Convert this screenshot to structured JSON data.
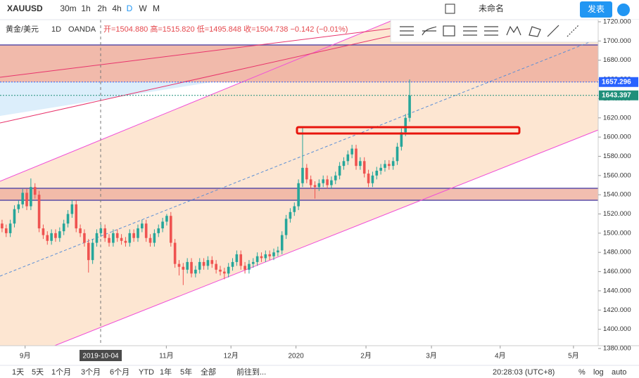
{
  "toolbar": {
    "symbol": "XAUUSD",
    "intervals": [
      "30m",
      "1h",
      "2h",
      "4h",
      "D",
      "W",
      "M"
    ],
    "layout_name": "未命名",
    "publish": "发表"
  },
  "legend": {
    "name": "黄金/美元",
    "interval": "1D",
    "source": "OANDA",
    "ohlc": "开=1504.880 高=1515.820 低=1495.848 收=1504.738 −0.142 (−0.01%)"
  },
  "footer": {
    "ranges": [
      "1天",
      "5天",
      "1个月",
      "3个月",
      "6个月",
      "YTD",
      "1年",
      "5年",
      "全部"
    ],
    "goto": "前往到...",
    "clock": "20:28:03 (UTC+8)",
    "percent": "%",
    "log": "log",
    "auto": "auto"
  },
  "chart_data": {
    "type": "candlestick",
    "up_color": "#26a69a",
    "down_color": "#ef5350",
    "open": [
      1510,
      1505,
      1500,
      1510,
      1525,
      1530,
      1542,
      1528,
      1548,
      1540,
      1505,
      1498,
      1492,
      1500,
      1495,
      1502,
      1510,
      1520,
      1530,
      1505,
      1500,
      1490,
      1472,
      1490,
      1500,
      1505,
      1495,
      1490,
      1500,
      1495,
      1492,
      1490,
      1500,
      1495,
      1505,
      1510,
      1495,
      1490,
      1500,
      1505,
      1512,
      1518,
      1490,
      1468,
      1465,
      1462,
      1470,
      1458,
      1462,
      1470,
      1466,
      1472,
      1468,
      1462,
      1460,
      1458,
      1465,
      1470,
      1478,
      1466,
      1462,
      1468,
      1470,
      1476,
      1474,
      1478,
      1476,
      1480,
      1482,
      1498,
      1515,
      1522,
      1528,
      1552,
      1568,
      1556,
      1550,
      1548,
      1552,
      1556,
      1550,
      1555,
      1560,
      1570,
      1575,
      1582,
      1588,
      1570,
      1575,
      1562,
      1552,
      1560,
      1565,
      1568,
      1572,
      1570,
      1575,
      1590,
      1605,
      1620
    ],
    "high": [
      1514,
      1509,
      1514,
      1529,
      1534,
      1546,
      1546,
      1557,
      1552,
      1544,
      1509,
      1502,
      1504,
      1504,
      1506,
      1514,
      1524,
      1535,
      1534,
      1509,
      1504,
      1494,
      1494,
      1504,
      1509,
      1509,
      1499,
      1504,
      1504,
      1499,
      1496,
      1504,
      1504,
      1509,
      1514,
      1514,
      1499,
      1504,
      1509,
      1516,
      1520,
      1522,
      1494,
      1472,
      1469,
      1474,
      1474,
      1466,
      1474,
      1474,
      1476,
      1476,
      1472,
      1466,
      1464,
      1469,
      1474,
      1482,
      1482,
      1470,
      1472,
      1474,
      1480,
      1480,
      1482,
      1482,
      1484,
      1486,
      1502,
      1519,
      1526,
      1532,
      1556,
      1611,
      1572,
      1560,
      1554,
      1556,
      1560,
      1560,
      1559,
      1564,
      1574,
      1579,
      1586,
      1592,
      1592,
      1579,
      1579,
      1566,
      1564,
      1569,
      1572,
      1576,
      1576,
      1579,
      1594,
      1609,
      1624,
      1660
    ],
    "low": [
      1501,
      1496,
      1496,
      1506,
      1521,
      1526,
      1524,
      1524,
      1536,
      1501,
      1494,
      1488,
      1488,
      1491,
      1491,
      1498,
      1506,
      1516,
      1501,
      1496,
      1486,
      1459,
      1468,
      1486,
      1496,
      1491,
      1486,
      1486,
      1491,
      1488,
      1486,
      1486,
      1491,
      1491,
      1501,
      1491,
      1486,
      1486,
      1496,
      1501,
      1508,
      1486,
      1464,
      1456,
      1446,
      1458,
      1454,
      1454,
      1458,
      1462,
      1462,
      1464,
      1458,
      1456,
      1452,
      1454,
      1461,
      1466,
      1462,
      1458,
      1458,
      1464,
      1466,
      1470,
      1470,
      1472,
      1472,
      1476,
      1478,
      1494,
      1511,
      1518,
      1524,
      1548,
      1552,
      1546,
      1536,
      1544,
      1548,
      1546,
      1546,
      1551,
      1556,
      1566,
      1571,
      1578,
      1566,
      1566,
      1558,
      1548,
      1548,
      1556,
      1561,
      1564,
      1566,
      1566,
      1571,
      1586,
      1601,
      1616
    ],
    "close": [
      1505,
      1500,
      1510,
      1525,
      1530,
      1542,
      1528,
      1548,
      1540,
      1505,
      1498,
      1492,
      1500,
      1495,
      1502,
      1510,
      1520,
      1530,
      1505,
      1500,
      1490,
      1472,
      1490,
      1500,
      1505,
      1495,
      1490,
      1500,
      1495,
      1492,
      1490,
      1500,
      1495,
      1505,
      1510,
      1495,
      1490,
      1500,
      1505,
      1512,
      1518,
      1490,
      1468,
      1465,
      1462,
      1470,
      1458,
      1462,
      1470,
      1466,
      1472,
      1468,
      1462,
      1460,
      1458,
      1465,
      1470,
      1478,
      1466,
      1462,
      1468,
      1470,
      1476,
      1474,
      1478,
      1476,
      1480,
      1482,
      1498,
      1515,
      1522,
      1528,
      1552,
      1568,
      1556,
      1550,
      1548,
      1552,
      1556,
      1550,
      1555,
      1560,
      1570,
      1575,
      1582,
      1588,
      1570,
      1575,
      1562,
      1552,
      1560,
      1565,
      1568,
      1572,
      1570,
      1575,
      1590,
      1605,
      1620,
      1643.397
    ],
    "xlim": [
      -0.5,
      144.8
    ],
    "xticks": [
      {
        "value": 5.6,
        "label": "9月"
      },
      {
        "value": 39.9,
        "label": "11月"
      },
      {
        "value": 55.6,
        "label": "12月"
      },
      {
        "value": 71.4,
        "label": "2020"
      },
      {
        "value": 88.4,
        "label": "2月"
      },
      {
        "value": 104.3,
        "label": "3月"
      },
      {
        "value": 121,
        "label": "4月"
      },
      {
        "value": 138.8,
        "label": "5月"
      }
    ],
    "crosshair_date": "2019-10-04",
    "ylim": [
      1377.5,
      1720
    ],
    "yticks": [
      {
        "value": 1380,
        "label": "1380.000"
      },
      {
        "value": 1400,
        "label": "1400.000"
      },
      {
        "value": 1420,
        "label": "1420.000"
      },
      {
        "value": 1440,
        "label": "1440.000"
      },
      {
        "value": 1460,
        "label": "1460.000"
      },
      {
        "value": 1480,
        "label": "1480.000"
      },
      {
        "value": 1500,
        "label": "1500.000"
      },
      {
        "value": 1520,
        "label": "1520.000"
      },
      {
        "value": 1540,
        "label": "1540.000"
      },
      {
        "value": 1560,
        "label": "1560.000"
      },
      {
        "value": 1580,
        "label": "1580.000"
      },
      {
        "value": 1600,
        "label": "1600.000"
      },
      {
        "value": 1620,
        "label": "1620.000"
      },
      {
        "value": 1640,
        "label": "1640.000"
      },
      {
        "value": 1660,
        "label": "1660.000"
      },
      {
        "value": 1680,
        "label": "1680.000"
      },
      {
        "value": 1700,
        "label": "1700.000"
      },
      {
        "value": 1720,
        "label": "1720.000"
      }
    ],
    "price_lines": [
      {
        "value": 1657.296,
        "label": "1657.296",
        "color": "#2962ff"
      },
      {
        "value": 1643.397,
        "label": "1643.397",
        "color": "#1f8f7a"
      }
    ]
  }
}
